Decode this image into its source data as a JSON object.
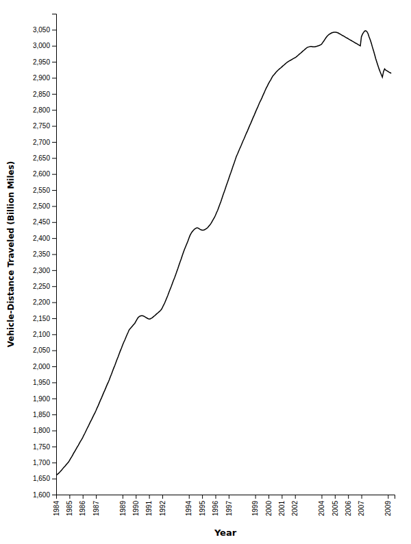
{
  "chart_data": {
    "type": "line",
    "xlabel": "Year",
    "ylabel": "Vehicle-Distance Traveled (Billion Miles)",
    "color": "#000000",
    "grid": false,
    "xlim": [
      1984,
      2009.5
    ],
    "xticks": [
      1984,
      1985,
      1986,
      1987,
      1989,
      1990,
      1991,
      1992,
      1994,
      1995,
      1996,
      1997,
      1999,
      2000,
      2001,
      2002,
      2004,
      2005,
      2006,
      2007,
      2009
    ],
    "ylim": [
      1600,
      3100
    ],
    "yticks": [
      {
        "value": 1600,
        "label": "1,600"
      },
      {
        "value": 1650,
        "label": "1,650"
      },
      {
        "value": 1700,
        "label": "1,700"
      },
      {
        "value": 1750,
        "label": "1,750"
      },
      {
        "value": 1800,
        "label": "1,800"
      },
      {
        "value": 1850,
        "label": "1,850"
      },
      {
        "value": 1900,
        "label": "1,900"
      },
      {
        "value": 1950,
        "label": "1,950"
      },
      {
        "value": 2000,
        "label": "2,000"
      },
      {
        "value": 2050,
        "label": "2,050"
      },
      {
        "value": 2100,
        "label": "2,100"
      },
      {
        "value": 2150,
        "label": "2,150"
      },
      {
        "value": 2200,
        "label": "2,200"
      },
      {
        "value": 2250,
        "label": "2,250"
      },
      {
        "value": 2300,
        "label": "2,300"
      },
      {
        "value": 2350,
        "label": "2,350"
      },
      {
        "value": 2400,
        "label": "2,400"
      },
      {
        "value": 2450,
        "label": "2,450"
      },
      {
        "value": 2500,
        "label": "2,500"
      },
      {
        "value": 2550,
        "label": "2,550"
      },
      {
        "value": 2600,
        "label": "2,600"
      },
      {
        "value": 2650,
        "label": "2,650"
      },
      {
        "value": 2700,
        "label": "2,700"
      },
      {
        "value": 2750,
        "label": "2,750"
      },
      {
        "value": 2800,
        "label": "2,800"
      },
      {
        "value": 2850,
        "label": "2,850"
      },
      {
        "value": 2900,
        "label": "2,900"
      },
      {
        "value": 2950,
        "label": "2,950"
      },
      {
        "value": 3000,
        "label": "3,000"
      },
      {
        "value": 3050,
        "label": "3,050"
      }
    ],
    "x": [
      1984.0,
      1984.08,
      1984.17,
      1984.25,
      1984.33,
      1984.42,
      1984.5,
      1984.58,
      1984.67,
      1984.75,
      1984.83,
      1984.92,
      1985.0,
      1985.08,
      1985.17,
      1985.25,
      1985.33,
      1985.42,
      1985.5,
      1985.58,
      1985.67,
      1985.75,
      1985.83,
      1985.92,
      1986.0,
      1986.08,
      1986.17,
      1986.25,
      1986.33,
      1986.42,
      1986.5,
      1986.58,
      1986.67,
      1986.75,
      1986.83,
      1986.92,
      1987.0,
      1987.08,
      1987.17,
      1987.25,
      1987.33,
      1987.42,
      1987.5,
      1987.58,
      1987.67,
      1987.75,
      1987.83,
      1987.92,
      1988.0,
      1988.08,
      1988.17,
      1988.25,
      1988.33,
      1988.42,
      1988.5,
      1988.58,
      1988.67,
      1988.75,
      1988.83,
      1988.92,
      1989.0,
      1989.08,
      1989.17,
      1989.25,
      1989.33,
      1989.42,
      1989.5,
      1989.58,
      1989.67,
      1989.75,
      1989.83,
      1989.92,
      1990.0,
      1990.08,
      1990.17,
      1990.25,
      1990.33,
      1990.42,
      1990.5,
      1990.58,
      1990.67,
      1990.75,
      1990.83,
      1990.92,
      1991.0,
      1991.08,
      1991.17,
      1991.25,
      1991.33,
      1991.42,
      1991.5,
      1991.58,
      1991.67,
      1991.75,
      1991.83,
      1991.92,
      1992.0,
      1992.08,
      1992.17,
      1992.25,
      1992.33,
      1992.42,
      1992.5,
      1992.58,
      1992.67,
      1992.75,
      1992.83,
      1992.92,
      1993.0,
      1993.08,
      1993.17,
      1993.25,
      1993.33,
      1993.42,
      1993.5,
      1993.58,
      1993.67,
      1993.75,
      1993.83,
      1993.92,
      1994.0,
      1994.08,
      1994.17,
      1994.25,
      1994.33,
      1994.42,
      1994.5,
      1994.58,
      1994.67,
      1994.75,
      1994.83,
      1994.92,
      1995.0,
      1995.08,
      1995.17,
      1995.25,
      1995.33,
      1995.42,
      1995.5,
      1995.58,
      1995.67,
      1995.75,
      1995.83,
      1995.92,
      1996.0,
      1996.08,
      1996.17,
      1996.25,
      1996.33,
      1996.42,
      1996.5,
      1996.58,
      1996.67,
      1996.75,
      1996.83,
      1996.92,
      1997.0,
      1997.08,
      1997.17,
      1997.25,
      1997.33,
      1997.42,
      1997.5,
      1997.58,
      1997.67,
      1997.75,
      1997.83,
      1997.92,
      1998.0,
      1998.08,
      1998.17,
      1998.25,
      1998.33,
      1998.42,
      1998.5,
      1998.58,
      1998.67,
      1998.75,
      1998.83,
      1998.92,
      1999.0,
      1999.08,
      1999.17,
      1999.25,
      1999.33,
      1999.42,
      1999.5,
      1999.58,
      1999.67,
      1999.75,
      1999.83,
      1999.92,
      2000.0,
      2000.08,
      2000.17,
      2000.25,
      2000.33,
      2000.42,
      2000.5,
      2000.58,
      2000.67,
      2000.75,
      2000.83,
      2000.92,
      2001.0,
      2001.08,
      2001.17,
      2001.25,
      2001.33,
      2001.42,
      2001.5,
      2001.58,
      2001.67,
      2001.75,
      2001.83,
      2001.92,
      2002.0,
      2002.08,
      2002.17,
      2002.25,
      2002.33,
      2002.42,
      2002.5,
      2002.58,
      2002.67,
      2002.75,
      2002.83,
      2002.92,
      2003.0,
      2003.08,
      2003.17,
      2003.25,
      2003.33,
      2003.42,
      2003.5,
      2003.58,
      2003.67,
      2003.75,
      2003.83,
      2003.92,
      2004.0,
      2004.08,
      2004.17,
      2004.25,
      2004.33,
      2004.42,
      2004.5,
      2004.58,
      2004.67,
      2004.75,
      2004.83,
      2004.92,
      2005.0,
      2005.08,
      2005.17,
      2005.25,
      2005.33,
      2005.42,
      2005.5,
      2005.58,
      2005.67,
      2005.75,
      2005.83,
      2005.92,
      2006.0,
      2006.08,
      2006.17,
      2006.25,
      2006.33,
      2006.42,
      2006.5,
      2006.58,
      2006.67,
      2006.75,
      2006.83,
      2006.92,
      2007.0,
      2007.08,
      2007.17,
      2007.25,
      2007.33,
      2007.42,
      2007.5,
      2007.58,
      2007.67,
      2007.75,
      2007.83,
      2007.92,
      2008.0,
      2008.08,
      2008.17,
      2008.25,
      2008.33,
      2008.42,
      2008.5,
      2008.58,
      2008.67,
      2008.75,
      2008.83,
      2008.92,
      2009.0,
      2009.08,
      2009.17,
      2009.25
    ],
    "values": [
      1660,
      1663,
      1666,
      1669,
      1673,
      1677,
      1681,
      1685,
      1689,
      1693,
      1697,
      1701,
      1706,
      1712,
      1718,
      1724,
      1730,
      1736,
      1742,
      1748,
      1754,
      1760,
      1766,
      1772,
      1778,
      1785,
      1792,
      1799,
      1806,
      1813,
      1820,
      1827,
      1834,
      1841,
      1848,
      1855,
      1862,
      1870,
      1878,
      1886,
      1894,
      1902,
      1910,
      1918,
      1926,
      1934,
      1942,
      1950,
      1958,
      1967,
      1976,
      1985,
      1994,
      2003,
      2012,
      2021,
      2030,
      2039,
      2048,
      2057,
      2066,
      2074,
      2082,
      2090,
      2098,
      2106,
      2114,
      2118,
      2122,
      2126,
      2130,
      2134,
      2140,
      2146,
      2152,
      2155,
      2157,
      2158,
      2158,
      2157,
      2155,
      2153,
      2151,
      2149,
      2148,
      2148,
      2150,
      2152,
      2155,
      2158,
      2161,
      2164,
      2167,
      2170,
      2173,
      2177,
      2183,
      2190,
      2197,
      2205,
      2213,
      2222,
      2231,
      2240,
      2249,
      2258,
      2267,
      2276,
      2285,
      2295,
      2305,
      2315,
      2325,
      2335,
      2345,
      2355,
      2365,
      2373,
      2381,
      2390,
      2399,
      2408,
      2415,
      2420,
      2424,
      2428,
      2430,
      2432,
      2432,
      2430,
      2428,
      2426,
      2425,
      2425,
      2426,
      2428,
      2430,
      2433,
      2437,
      2441,
      2446,
      2452,
      2458,
      2464,
      2471,
      2479,
      2487,
      2496,
      2505,
      2515,
      2525,
      2535,
      2545,
      2555,
      2565,
      2575,
      2585,
      2595,
      2605,
      2615,
      2625,
      2635,
      2645,
      2655,
      2663,
      2671,
      2679,
      2687,
      2695,
      2703,
      2711,
      2719,
      2727,
      2735,
      2743,
      2751,
      2759,
      2767,
      2775,
      2783,
      2791,
      2799,
      2807,
      2815,
      2823,
      2830,
      2837,
      2845,
      2853,
      2861,
      2868,
      2875,
      2882,
      2888,
      2894,
      2900,
      2906,
      2910,
      2914,
      2918,
      2922,
      2925,
      2928,
      2931,
      2934,
      2937,
      2940,
      2943,
      2946,
      2949,
      2951,
      2953,
      2955,
      2957,
      2959,
      2961,
      2963,
      2965,
      2968,
      2971,
      2974,
      2977,
      2980,
      2983,
      2986,
      2989,
      2992,
      2995,
      2996,
      2997,
      2998,
      2998,
      2997,
      2997,
      2997,
      2998,
      2999,
      3000,
      3001,
      3003,
      3005,
      3010,
      3015,
      3020,
      3025,
      3030,
      3033,
      3036,
      3038,
      3040,
      3041,
      3042,
      3042,
      3042,
      3041,
      3040,
      3038,
      3036,
      3034,
      3032,
      3030,
      3028,
      3026,
      3024,
      3022,
      3020,
      3018,
      3016,
      3014,
      3012,
      3010,
      3008,
      3006,
      3004,
      3002,
      3000,
      3028,
      3036,
      3042,
      3046,
      3047,
      3044,
      3038,
      3028,
      3018,
      3008,
      2996,
      2984,
      2972,
      2960,
      2948,
      2938,
      2928,
      2918,
      2910,
      2902,
      2920,
      2928,
      2924,
      2922,
      2920,
      2918,
      2916,
      2914
    ]
  }
}
